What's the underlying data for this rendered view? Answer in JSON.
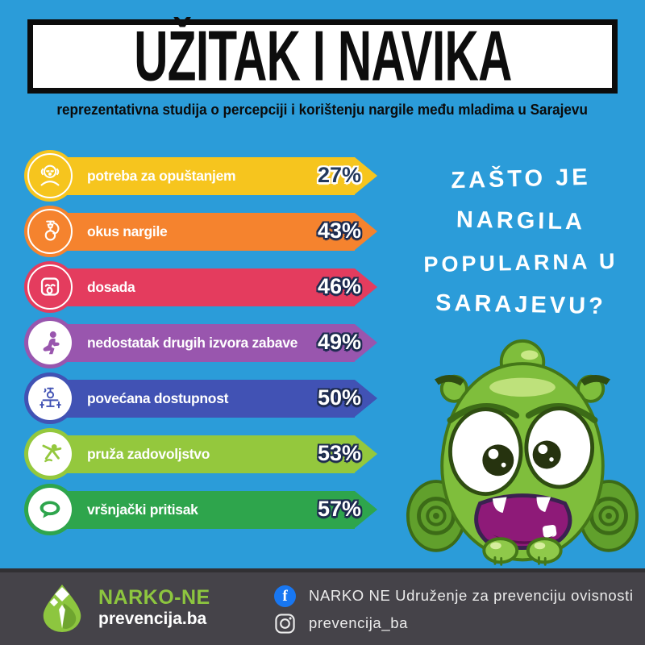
{
  "colors": {
    "background": "#2B9CD9",
    "footer_background": "#454349",
    "accent_green": "#8DC63F",
    "facebook_blue": "#1877F2",
    "value_outline": "#1d2b4f"
  },
  "header": {
    "title": "UŽITAK I NAVIKA",
    "subtitle": "reprezentativna studija o percepciji i korištenju nargile među mladima u Sarajevu"
  },
  "question": {
    "lines": [
      "ZAŠTO JE",
      "NARGILA",
      "POPULARNA U",
      "SARAJEVU?"
    ]
  },
  "bars": [
    {
      "label": "potreba za opuštanjem",
      "value": 27,
      "display": "27%",
      "color": "#F6C51E",
      "icon": "relaxed-person-icon",
      "icon_inverted": false,
      "value_color": "#24395c",
      "value_outline": "#ffffff"
    },
    {
      "label": "okus nargile",
      "value": 43,
      "display": "43%",
      "color": "#F5832E",
      "icon": "hookah-icon",
      "icon_inverted": false,
      "value_color": "#ffffff",
      "value_outline": "#1d2b4f"
    },
    {
      "label": "dosada",
      "value": 46,
      "display": "46%",
      "color": "#E43C5E",
      "icon": "sad-face-icon",
      "icon_inverted": false,
      "value_color": "#ffffff",
      "value_outline": "#1d2b4f"
    },
    {
      "label": "nedostatak drugih izvora zabave",
      "value": 49,
      "display": "49%",
      "color": "#9956AE",
      "icon": "bored-person-icon",
      "icon_inverted": true,
      "value_color": "#ffffff",
      "value_outline": "#1d2b4f"
    },
    {
      "label": "povećana dostupnost",
      "value": 50,
      "display": "50%",
      "color": "#4152B4",
      "icon": "hookah-lounge-icon",
      "icon_inverted": true,
      "value_color": "#ffffff",
      "value_outline": "#1d2b4f"
    },
    {
      "label": "pruža zadovoljstvo",
      "value": 53,
      "display": "53%",
      "color": "#94C83D",
      "icon": "joyful-person-icon",
      "icon_inverted": true,
      "value_color": "#ffffff",
      "value_outline": "#1d2b4f"
    },
    {
      "label": "vršnjački pritisak",
      "value": 57,
      "display": "57%",
      "color": "#2EA54C",
      "icon": "speech-bubble-icon",
      "icon_inverted": true,
      "value_color": "#ffffff",
      "value_outline": "#1d2b4f"
    }
  ],
  "chart_data": {
    "type": "bar",
    "orientation": "horizontal",
    "title": "Zašto je nargila popularna u Sarajevu?",
    "subtitle": "reprezentativna studija o percepciji i korištenju nargile među mladima u Sarajevu",
    "categories": [
      "potreba za opuštanjem",
      "okus nargile",
      "dosada",
      "nedostatak drugih izvora zabave",
      "povećana dostupnost",
      "pruža zadovoljstvo",
      "vršnjački pritisak"
    ],
    "values": [
      27,
      43,
      46,
      49,
      50,
      53,
      57
    ],
    "unit": "%",
    "bar_colors": [
      "#F6C51E",
      "#F5832E",
      "#E43C5E",
      "#9956AE",
      "#4152B4",
      "#94C83D",
      "#2EA54C"
    ],
    "legend": false,
    "grid": false,
    "layout_hint": "equal-length decorative arrow bars with value labels at right"
  },
  "mascot": {
    "name": "scared-green-monster"
  },
  "footer": {
    "brand_name": "NARKO-NE",
    "brand_domain": "prevencija.ba",
    "facebook_label": "NARKO NE Udruženje za prevenciju ovisnosti",
    "instagram_label": "prevencija_ba"
  }
}
